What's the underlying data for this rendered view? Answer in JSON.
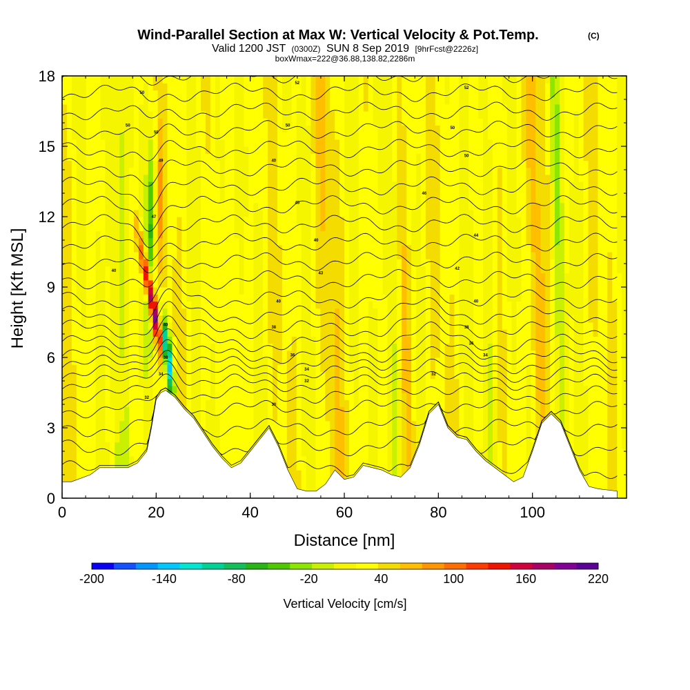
{
  "chart_data": {
    "type": "heatmap",
    "title": "Wind-Parallel Section at Max W: Vertical Velocity & Pot.Temp.",
    "title_mark": "(C)",
    "subtitle": {
      "valid_prefix": "Valid 1200 JST",
      "zulu": "(0300Z)",
      "date": "SUN 8 Sep 2019",
      "forecast": "[9hrFcst@2226z]"
    },
    "info": "boxWmax=222@36.88,138.82,2286m",
    "xlabel": "Distance [nm]",
    "ylabel": "Height [Kft MSL]",
    "xlim": [
      0,
      120
    ],
    "ylim": [
      0,
      18
    ],
    "x_ticks": [
      0,
      20,
      40,
      60,
      80,
      100
    ],
    "y_ticks": [
      0,
      3,
      6,
      9,
      12,
      15,
      18
    ],
    "colorbar": {
      "label": "Vertical Velocity [cm/s]",
      "tick_labels": [
        "-200",
        "-140",
        "-80",
        "-20",
        "40",
        "100",
        "160",
        "220"
      ],
      "tick_values": [
        -200,
        -140,
        -80,
        -20,
        40,
        100,
        160,
        220
      ],
      "range": [
        -200,
        220
      ],
      "colors": [
        "#0a00f5",
        "#1450ff",
        "#0096ff",
        "#00c8ff",
        "#00e6d2",
        "#00d296",
        "#14be5a",
        "#28b414",
        "#50c800",
        "#8ce600",
        "#c8f000",
        "#f5f500",
        "#ffff00",
        "#f5dc00",
        "#ffbe00",
        "#ff9600",
        "#ff6e00",
        "#ff3c00",
        "#f01400",
        "#d2003c",
        "#aa0064",
        "#820096",
        "#5a0096"
      ]
    },
    "terrain_kft": {
      "x": [
        0,
        2,
        6,
        8,
        10,
        12,
        14,
        16,
        18,
        19,
        20,
        21,
        22,
        24,
        26,
        28,
        30,
        32,
        34,
        36,
        38,
        40,
        42,
        44,
        46,
        48,
        50,
        52,
        54,
        56,
        58,
        60,
        62,
        64,
        66,
        68,
        70,
        72,
        74,
        76,
        78,
        80,
        82,
        84,
        86,
        88,
        90,
        92,
        94,
        96,
        98,
        100,
        102,
        104,
        106,
        108,
        110,
        112,
        114,
        118
      ],
      "y": [
        0.7,
        0.7,
        1.0,
        1.3,
        1.3,
        1.3,
        1.3,
        1.5,
        2.0,
        3.0,
        4.2,
        4.5,
        4.6,
        4.3,
        3.8,
        3.4,
        2.8,
        2.2,
        1.7,
        1.3,
        1.5,
        2.0,
        2.5,
        3.0,
        2.2,
        1.2,
        0.4,
        0.3,
        0.3,
        0.6,
        1.2,
        0.8,
        0.9,
        1.4,
        1.3,
        1.2,
        1.0,
        0.9,
        1.3,
        2.3,
        3.6,
        4.0,
        3.0,
        2.6,
        2.5,
        2.0,
        1.6,
        1.3,
        1.0,
        0.7,
        0.9,
        2.0,
        3.2,
        3.6,
        3.2,
        2.2,
        1.2,
        0.5,
        0.4,
        0.3
      ]
    },
    "theta_contour_labels": [
      {
        "x": 17,
        "y": 17.3,
        "text": "50"
      },
      {
        "x": 14,
        "y": 15.9,
        "text": "50"
      },
      {
        "x": 20,
        "y": 15.6,
        "text": "50"
      },
      {
        "x": 21,
        "y": 14.4,
        "text": "49"
      },
      {
        "x": 19.5,
        "y": 12.0,
        "text": "47"
      },
      {
        "x": 11,
        "y": 9.7,
        "text": "40"
      },
      {
        "x": 50,
        "y": 17.7,
        "text": "52"
      },
      {
        "x": 48,
        "y": 15.9,
        "text": "50"
      },
      {
        "x": 45,
        "y": 14.4,
        "text": "40"
      },
      {
        "x": 50,
        "y": 12.6,
        "text": "45"
      },
      {
        "x": 54,
        "y": 11.0,
        "text": "40"
      },
      {
        "x": 55,
        "y": 9.6,
        "text": "43"
      },
      {
        "x": 46,
        "y": 8.4,
        "text": "40"
      },
      {
        "x": 45,
        "y": 7.3,
        "text": "38"
      },
      {
        "x": 49,
        "y": 6.1,
        "text": "36"
      },
      {
        "x": 52,
        "y": 5.5,
        "text": "34"
      },
      {
        "x": 52,
        "y": 5.0,
        "text": "32"
      },
      {
        "x": 45,
        "y": 4.0,
        "text": "30"
      },
      {
        "x": 86,
        "y": 17.5,
        "text": "52"
      },
      {
        "x": 83,
        "y": 15.8,
        "text": "50"
      },
      {
        "x": 86,
        "y": 14.6,
        "text": "50"
      },
      {
        "x": 77,
        "y": 13.0,
        "text": "46"
      },
      {
        "x": 88,
        "y": 11.2,
        "text": "44"
      },
      {
        "x": 84,
        "y": 9.8,
        "text": "42"
      },
      {
        "x": 88,
        "y": 8.4,
        "text": "40"
      },
      {
        "x": 86,
        "y": 7.3,
        "text": "38"
      },
      {
        "x": 87,
        "y": 6.6,
        "text": "36"
      },
      {
        "x": 90,
        "y": 6.1,
        "text": "34"
      },
      {
        "x": 79,
        "y": 5.3,
        "text": "32"
      },
      {
        "x": 22,
        "y": 7.4,
        "text": "40"
      },
      {
        "x": 22,
        "y": 6.0,
        "text": "38"
      },
      {
        "x": 21,
        "y": 5.3,
        "text": "34"
      },
      {
        "x": 18,
        "y": 4.3,
        "text": "32"
      }
    ]
  }
}
